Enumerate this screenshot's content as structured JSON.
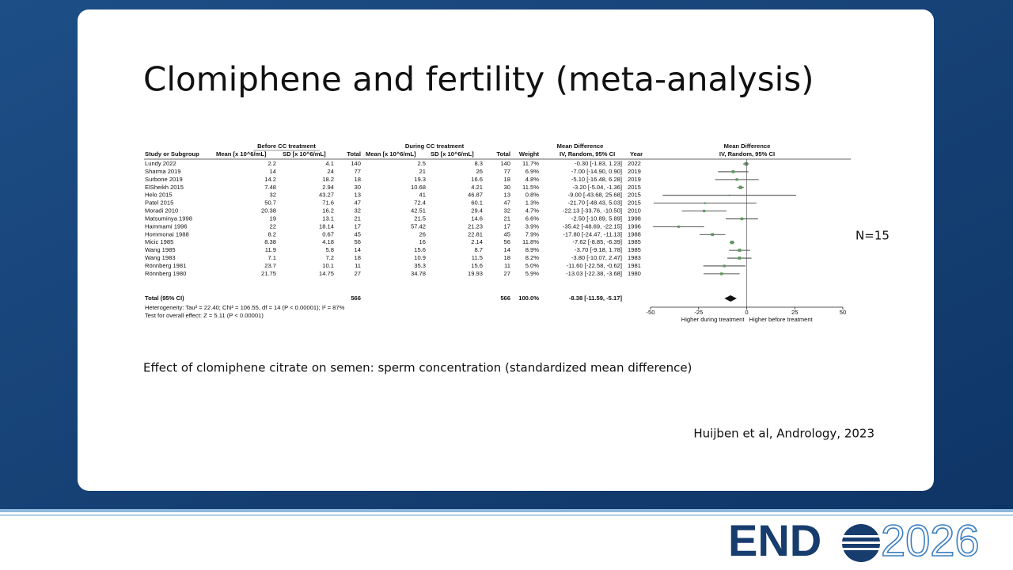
{
  "slide": {
    "title": "Clomiphene and fertility (meta-analysis)",
    "note": "N=15",
    "caption": "Effect of clomiphene citrate on semen: sperm concentration (standardized mean difference)",
    "citation": "Huijben et al, Andrology, 2023",
    "logo": {
      "word": "END",
      "year": "2026"
    }
  },
  "forest": {
    "group_headers": [
      "Before CC treatment",
      "During CC treatment",
      "Mean Difference",
      "Mean Difference"
    ],
    "columns": [
      "Study or Subgroup",
      "Mean [x 10^6/mL]",
      "SD [x 10^6/mL]",
      "Total",
      "Mean [x 10^6/mL]",
      "SD [x 10^6/mL]",
      "Total",
      "Weight",
      "IV, Random, 95% CI",
      "Year",
      "IV, Random, 95% CI"
    ],
    "rows": [
      [
        "Lundy 2022",
        "2.2",
        "4.1",
        "140",
        "2.5",
        "8.3",
        "140",
        "11.7%",
        "-0.30 [-1.83, 1.23]",
        "2022"
      ],
      [
        "Sharma 2019",
        "14",
        "24",
        "77",
        "21",
        "26",
        "77",
        "6.9%",
        "-7.00 [-14.90, 0.90]",
        "2019"
      ],
      [
        "Surbone 2019",
        "14.2",
        "18.2",
        "18",
        "19.3",
        "16.6",
        "18",
        "4.8%",
        "-5.10 [-16.48, 6.28]",
        "2019"
      ],
      [
        "ElSheikh 2015",
        "7.48",
        "2.94",
        "30",
        "10.68",
        "4.21",
        "30",
        "11.5%",
        "-3.20 [-5.04, -1.36]",
        "2015"
      ],
      [
        "Helo 2015",
        "32",
        "43.27",
        "13",
        "41",
        "46.87",
        "13",
        "0.8%",
        "-9.00 [-43.68, 25.68]",
        "2015"
      ],
      [
        "Patel 2015",
        "50.7",
        "71.6",
        "47",
        "72.4",
        "60.1",
        "47",
        "1.3%",
        "-21.70 [-48.43, 5.03]",
        "2015"
      ],
      [
        "Moradi 2010",
        "20.38",
        "16.2",
        "32",
        "42.51",
        "29.4",
        "32",
        "4.7%",
        "-22.13 [-33.76, -10.50]",
        "2010"
      ],
      [
        "Matsuminya 1998",
        "19",
        "13.1",
        "21",
        "21.5",
        "14.6",
        "21",
        "6.6%",
        "-2.50 [-10.89, 5.89]",
        "1998"
      ],
      [
        "Hammami 1996",
        "22",
        "18.14",
        "17",
        "57.42",
        "21.23",
        "17",
        "3.9%",
        "-35.42 [-48.69, -22.15]",
        "1996"
      ],
      [
        "Hommonai 1988",
        "8.2",
        "0.67",
        "45",
        "26",
        "22.81",
        "45",
        "7.9%",
        "-17.80 [-24.47, -11.13]",
        "1988"
      ],
      [
        "Micic 1985",
        "8.38",
        "4.18",
        "56",
        "16",
        "2.14",
        "56",
        "11.8%",
        "-7.62 [-8.85, -6.39]",
        "1985"
      ],
      [
        "Wang 1985",
        "11.9",
        "5.8",
        "14",
        "15.6",
        "8.7",
        "14",
        "8.9%",
        "-3.70 [-9.18, 1.78]",
        "1985"
      ],
      [
        "Wang 1983",
        "7.1",
        "7.2",
        "18",
        "10.9",
        "11.5",
        "18",
        "8.2%",
        "-3.80 [-10.07, 2.47]",
        "1983"
      ],
      [
        "Rönnberg 1981",
        "23.7",
        "10.1",
        "11",
        "35.3",
        "15.6",
        "11",
        "5.0%",
        "-11.60 [-22.58, -0.62]",
        "1981"
      ],
      [
        "Rönnberg 1980",
        "21.75",
        "14.75",
        "27",
        "34.78",
        "19.93",
        "27",
        "5.9%",
        "-13.03 [-22.38, -3.68]",
        "1980"
      ]
    ],
    "effects": {
      "md": [
        -0.3,
        -7.0,
        -5.1,
        -3.2,
        -9.0,
        -21.7,
        -22.13,
        -2.5,
        -35.42,
        -17.8,
        -7.62,
        -3.7,
        -3.8,
        -11.6,
        -13.03
      ],
      "lo": [
        -1.83,
        -14.9,
        -16.48,
        -5.04,
        -43.68,
        -48.43,
        -33.76,
        -10.89,
        -48.69,
        -24.47,
        -8.85,
        -9.18,
        -10.07,
        -22.58,
        -22.38
      ],
      "hi": [
        1.23,
        0.9,
        6.28,
        -1.36,
        25.68,
        5.03,
        -10.5,
        5.89,
        -22.15,
        -11.13,
        -6.39,
        1.78,
        2.47,
        -0.62,
        -3.68
      ],
      "weight": [
        11.7,
        6.9,
        4.8,
        11.5,
        0.8,
        1.3,
        4.7,
        6.6,
        3.9,
        7.9,
        11.8,
        8.9,
        8.2,
        5.0,
        5.9
      ]
    },
    "total": {
      "label": "Total (95% CI)",
      "n_before": "566",
      "n_during": "566",
      "weight": "100.0%",
      "ci": "-8.38 [-11.59, -5.17]",
      "md": -8.38,
      "lo": -11.59,
      "hi": -5.17
    },
    "heterogeneity": "Heterogeneity: Tau² = 22.40; Chi² = 106.55, df = 14 (P < 0.00001); I² = 87%",
    "overall_test": "Test for overall effect: Z = 5.11 (P < 0.00001)",
    "xlim": [
      -50,
      50
    ],
    "xticks": [
      -50,
      -25,
      0,
      25,
      50
    ],
    "axis_left": "Higher during treatment",
    "axis_right": "Higher before treatment"
  }
}
